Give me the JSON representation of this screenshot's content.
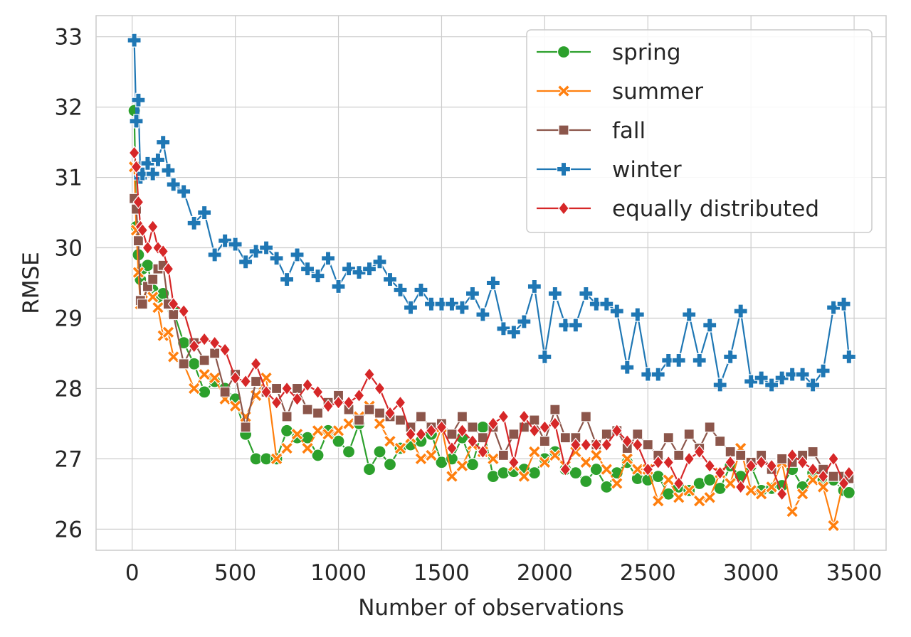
{
  "chart_data": {
    "type": "line",
    "xlabel": "Number of observations",
    "ylabel": "RMSE",
    "xlim": [
      -175,
      3655
    ],
    "ylim": [
      25.7,
      33.3
    ],
    "xticks": [
      0,
      500,
      1000,
      1500,
      2000,
      2500,
      3000,
      3500
    ],
    "yticks": [
      26,
      27,
      28,
      29,
      30,
      31,
      32,
      33
    ],
    "grid": true,
    "legend_position": "top-right",
    "x": [
      10,
      20,
      30,
      40,
      50,
      75,
      100,
      125,
      150,
      175,
      200,
      250,
      300,
      350,
      400,
      450,
      500,
      550,
      600,
      650,
      700,
      750,
      800,
      850,
      900,
      950,
      1000,
      1050,
      1100,
      1150,
      1200,
      1250,
      1300,
      1350,
      1400,
      1450,
      1500,
      1550,
      1600,
      1650,
      1700,
      1750,
      1800,
      1850,
      1900,
      1950,
      2000,
      2050,
      2100,
      2150,
      2200,
      2250,
      2300,
      2350,
      2400,
      2450,
      2500,
      2550,
      2600,
      2650,
      2700,
      2750,
      2800,
      2850,
      2900,
      2950,
      3000,
      3050,
      3100,
      3150,
      3200,
      3250,
      3300,
      3350,
      3400,
      3450,
      3475
    ],
    "series": [
      {
        "name": "spring",
        "color": "#2ca02c",
        "marker": "circle",
        "values": [
          31.95,
          30.3,
          29.9,
          29.55,
          29.7,
          29.75,
          29.4,
          29.3,
          29.35,
          29.2,
          29.1,
          28.65,
          28.35,
          27.95,
          28.1,
          28.0,
          27.85,
          27.35,
          27.0,
          27.0,
          27.0,
          27.4,
          27.3,
          27.3,
          27.05,
          27.4,
          27.25,
          27.1,
          27.5,
          26.85,
          27.1,
          26.92,
          27.15,
          27.2,
          27.25,
          27.35,
          26.95,
          27.0,
          27.3,
          26.92,
          27.45,
          26.75,
          26.8,
          26.82,
          26.85,
          26.8,
          27.0,
          27.1,
          26.85,
          26.8,
          26.68,
          26.85,
          26.6,
          26.8,
          26.95,
          26.72,
          26.7,
          26.75,
          26.5,
          26.6,
          26.55,
          26.65,
          26.7,
          26.58,
          26.9,
          26.75,
          26.9,
          26.55,
          26.58,
          26.62,
          26.85,
          26.6,
          26.8,
          26.7,
          26.7,
          26.55,
          26.52
        ]
      },
      {
        "name": "summer",
        "color": "#ff7f0e",
        "marker": "x",
        "values": [
          31.15,
          30.25,
          29.65,
          29.2,
          29.25,
          29.45,
          29.3,
          29.15,
          28.75,
          28.8,
          28.45,
          28.35,
          28.0,
          28.2,
          28.15,
          27.85,
          27.75,
          27.6,
          27.9,
          28.15,
          27.0,
          27.15,
          27.35,
          27.15,
          27.4,
          27.35,
          27.4,
          27.5,
          27.6,
          27.75,
          27.5,
          27.25,
          27.15,
          27.3,
          27.0,
          27.05,
          27.45,
          26.75,
          26.9,
          27.2,
          27.1,
          27.0,
          27.05,
          26.9,
          26.75,
          27.1,
          26.95,
          27.05,
          26.9,
          27.1,
          26.95,
          27.05,
          26.85,
          26.65,
          27.0,
          26.85,
          26.85,
          26.4,
          26.7,
          26.45,
          26.55,
          26.4,
          26.45,
          26.8,
          26.65,
          27.15,
          26.55,
          26.5,
          26.6,
          26.95,
          26.25,
          26.5,
          26.7,
          26.6,
          26.05,
          26.7,
          26.75
        ]
      },
      {
        "name": "fall",
        "color": "#8c564b",
        "marker": "square",
        "values": [
          30.7,
          30.55,
          30.1,
          29.25,
          29.2,
          29.45,
          29.55,
          29.7,
          29.75,
          29.2,
          29.05,
          28.35,
          28.65,
          28.4,
          28.5,
          27.95,
          28.2,
          27.45,
          28.1,
          27.95,
          28.0,
          27.6,
          28.0,
          27.7,
          27.65,
          27.8,
          27.9,
          27.7,
          27.55,
          27.7,
          27.65,
          27.6,
          27.55,
          27.45,
          27.6,
          27.45,
          27.5,
          27.35,
          27.6,
          27.45,
          27.3,
          27.45,
          27.05,
          27.35,
          27.45,
          27.55,
          27.25,
          27.7,
          27.3,
          27.3,
          27.6,
          27.2,
          27.35,
          27.4,
          27.15,
          27.35,
          27.2,
          27.05,
          27.3,
          27.05,
          27.35,
          27.15,
          27.45,
          27.25,
          27.1,
          27.05,
          26.95,
          27.05,
          26.85,
          27.0,
          26.95,
          27.05,
          27.1,
          26.85,
          26.75,
          26.75,
          26.72
        ]
      },
      {
        "name": "winter",
        "color": "#1f77b4",
        "marker": "plus",
        "values": [
          32.95,
          31.8,
          32.1,
          31.0,
          31.05,
          31.2,
          31.05,
          31.25,
          31.5,
          31.1,
          30.9,
          30.8,
          30.35,
          30.5,
          29.9,
          30.1,
          30.05,
          29.8,
          29.95,
          30.0,
          29.85,
          29.55,
          29.9,
          29.7,
          29.6,
          29.85,
          29.45,
          29.7,
          29.65,
          29.7,
          29.8,
          29.55,
          29.4,
          29.15,
          29.4,
          29.2,
          29.2,
          29.2,
          29.15,
          29.35,
          29.05,
          29.5,
          28.85,
          28.8,
          28.95,
          29.45,
          28.45,
          29.35,
          28.9,
          28.9,
          29.35,
          29.2,
          29.2,
          29.1,
          28.3,
          29.05,
          28.2,
          28.2,
          28.4,
          28.4,
          29.05,
          28.4,
          28.9,
          28.05,
          28.45,
          29.1,
          28.1,
          28.15,
          28.05,
          28.15,
          28.2,
          28.2,
          28.05,
          28.25,
          29.15,
          29.2,
          28.45
        ]
      },
      {
        "name": "equally distributed",
        "color": "#d62728",
        "marker": "diamond",
        "values": [
          31.35,
          31.15,
          30.65,
          30.3,
          30.25,
          30.0,
          30.3,
          30.0,
          29.95,
          29.7,
          29.2,
          29.1,
          28.6,
          28.7,
          28.65,
          28.55,
          28.15,
          28.1,
          28.35,
          27.95,
          27.8,
          28.0,
          27.85,
          28.05,
          27.95,
          27.75,
          27.8,
          27.8,
          27.9,
          28.2,
          28.0,
          27.65,
          27.8,
          27.35,
          27.35,
          27.4,
          27.45,
          27.15,
          27.4,
          27.25,
          27.1,
          27.5,
          27.6,
          26.95,
          27.6,
          27.4,
          27.45,
          27.5,
          26.85,
          27.2,
          27.2,
          27.2,
          27.2,
          27.4,
          27.25,
          27.2,
          26.85,
          26.95,
          26.95,
          26.65,
          27.0,
          27.1,
          26.9,
          26.8,
          26.95,
          26.6,
          26.9,
          26.95,
          26.9,
          26.5,
          27.05,
          26.95,
          26.85,
          26.75,
          27.0,
          26.65,
          26.8
        ]
      }
    ]
  }
}
